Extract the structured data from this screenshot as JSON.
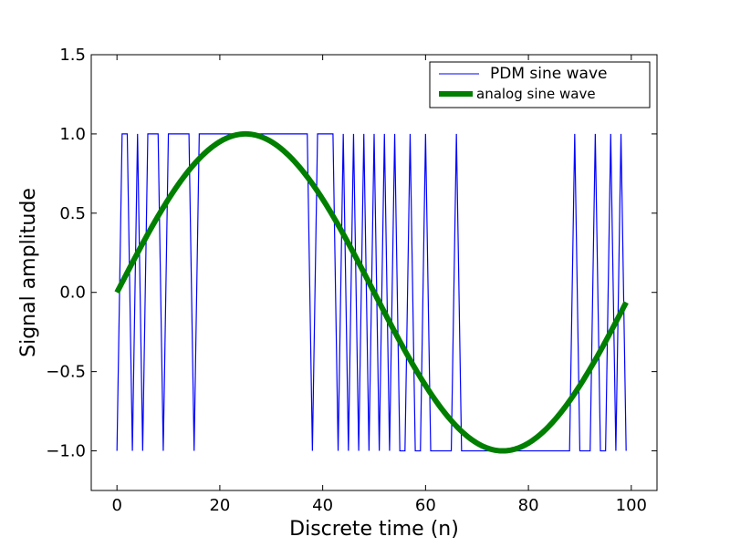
{
  "chart_data": {
    "type": "line",
    "title": "",
    "xlabel": "Discrete time (n)",
    "ylabel": "Signal amplitude",
    "xlim": [
      -5,
      105
    ],
    "ylim": [
      -1.25,
      1.5
    ],
    "x_ticks": [
      0,
      20,
      40,
      60,
      80,
      100
    ],
    "x_tick_labels": [
      "0",
      "20",
      "40",
      "60",
      "80",
      "100"
    ],
    "y_ticks": [
      -1.0,
      -0.5,
      0.0,
      0.5,
      1.0,
      1.5
    ],
    "y_tick_labels": [
      "−1.0",
      "−0.5",
      "0.0",
      "0.5",
      "1.0",
      "1.5"
    ],
    "grid": false,
    "legend_position": "top-right",
    "series": [
      {
        "name": "PDM sine wave",
        "style": "step",
        "color": "#0000ff",
        "x": [
          0,
          1,
          2,
          3,
          4,
          5,
          6,
          7,
          8,
          9,
          10,
          11,
          12,
          13,
          14,
          15,
          16,
          17,
          18,
          19,
          20,
          21,
          22,
          23,
          24,
          25,
          26,
          27,
          28,
          29,
          30,
          31,
          32,
          33,
          34,
          35,
          36,
          37,
          38,
          39,
          40,
          41,
          42,
          43,
          44,
          45,
          46,
          47,
          48,
          49,
          50,
          51,
          52,
          53,
          54,
          55,
          56,
          57,
          58,
          59,
          60,
          61,
          62,
          63,
          64,
          65,
          66,
          67,
          68,
          69,
          70,
          71,
          72,
          73,
          74,
          75,
          76,
          77,
          78,
          79,
          80,
          81,
          82,
          83,
          84,
          85,
          86,
          87,
          88,
          89,
          90,
          91,
          92,
          93,
          94,
          95,
          96,
          97,
          98,
          99
        ],
        "values": [
          -1,
          1,
          1,
          -1,
          1,
          -1,
          1,
          1,
          1,
          -1,
          1,
          1,
          1,
          1,
          1,
          -1,
          1,
          1,
          1,
          1,
          1,
          1,
          1,
          1,
          1,
          1,
          1,
          1,
          1,
          1,
          1,
          1,
          1,
          1,
          1,
          1,
          1,
          1,
          -1,
          1,
          1,
          1,
          1,
          -1,
          1,
          -1,
          1,
          -1,
          1,
          -1,
          1,
          -1,
          1,
          -1,
          1,
          -1,
          -1,
          1,
          -1,
          -1,
          1,
          -1,
          -1,
          -1,
          -1,
          -1,
          1,
          -1,
          -1,
          -1,
          -1,
          -1,
          -1,
          -1,
          -1,
          -1,
          -1,
          -1,
          -1,
          -1,
          -1,
          -1,
          -1,
          -1,
          -1,
          -1,
          -1,
          -1,
          -1,
          1,
          -1,
          -1,
          -1,
          1,
          -1,
          -1,
          1,
          -1,
          1,
          -1
        ]
      },
      {
        "name": "analog sine wave",
        "style": "line",
        "color": "#007f00",
        "function": "sin(2*pi*n/100)",
        "x_range": [
          0,
          99
        ]
      }
    ]
  }
}
